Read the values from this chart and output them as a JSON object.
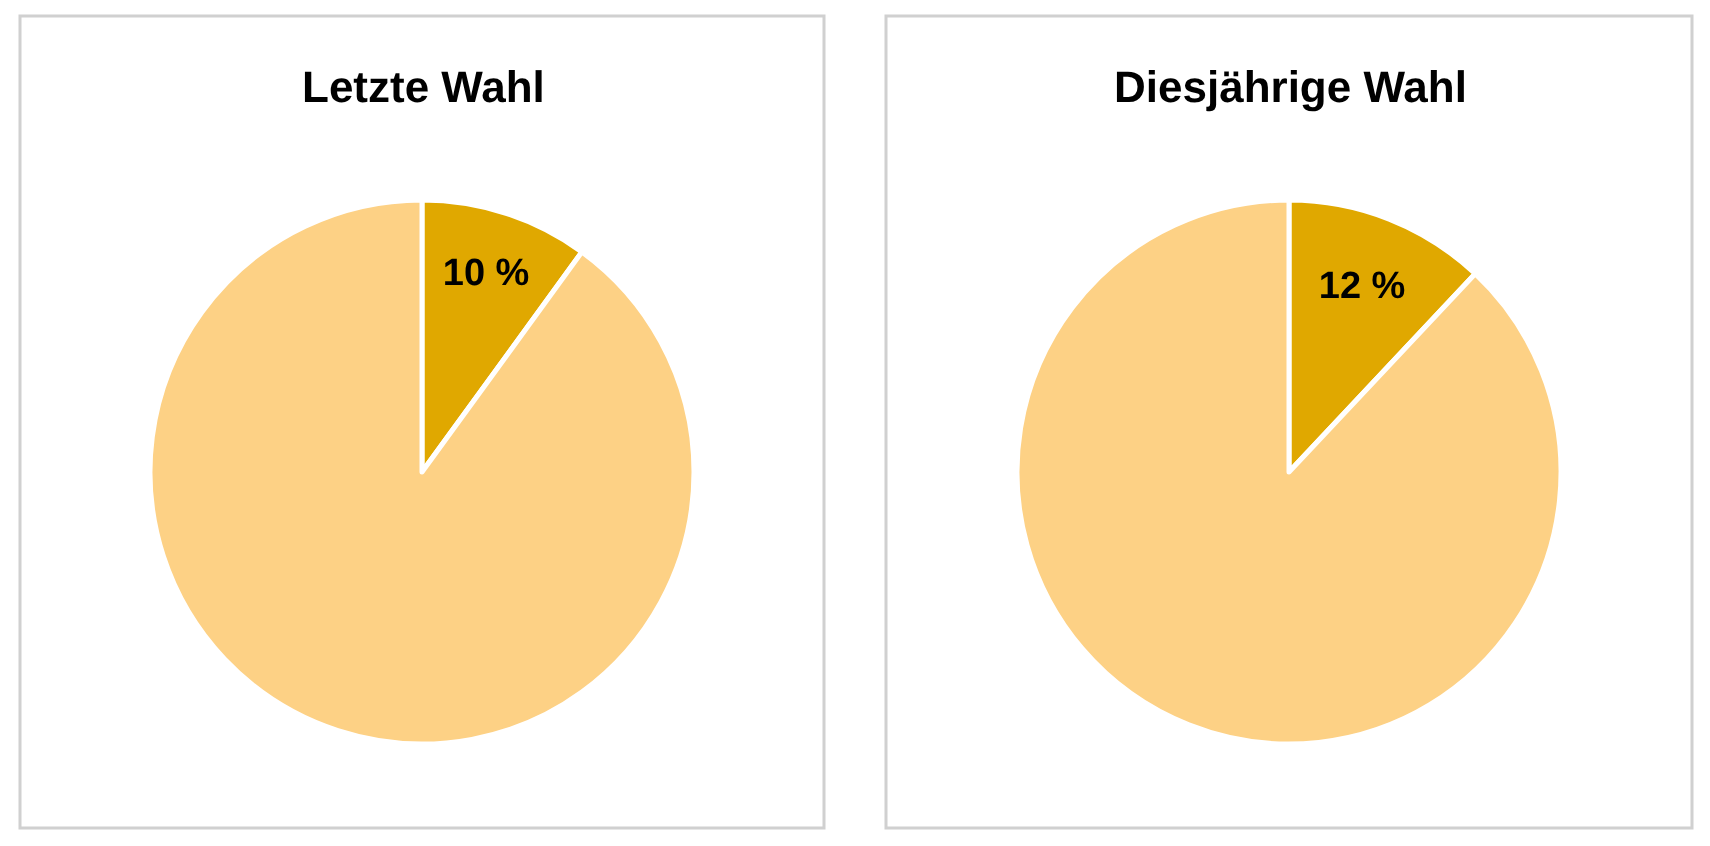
{
  "chart_data": [
    {
      "type": "pie",
      "title": "Letzte Wahl",
      "categories": [
        null,
        null
      ],
      "values": [
        10,
        90
      ],
      "colors": [
        "#e0a800",
        "#fdd185"
      ],
      "value_labels": [
        "10 %",
        null
      ]
    },
    {
      "type": "pie",
      "title": "Diesjährige Wahl",
      "categories": [
        null,
        null
      ],
      "values": [
        12,
        88
      ],
      "colors": [
        "#e0a800",
        "#fdd185"
      ],
      "value_labels": [
        "12 %",
        null
      ]
    }
  ]
}
